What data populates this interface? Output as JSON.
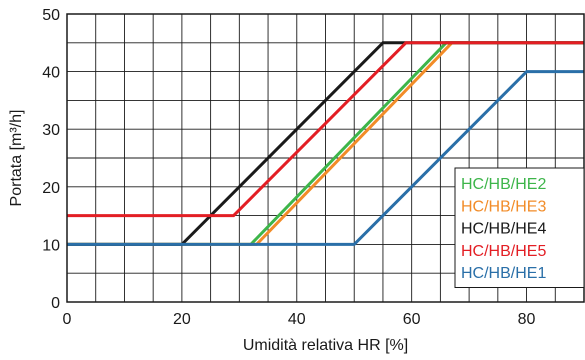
{
  "chart_data": {
    "type": "line",
    "title": "",
    "xlabel": "Umidità relativa HR [%]",
    "ylabel": "Portata [m³/h]",
    "xlim": [
      0,
      90
    ],
    "ylim": [
      0,
      50
    ],
    "x_ticks": [
      0,
      20,
      40,
      60,
      80
    ],
    "y_ticks": [
      0,
      10,
      20,
      30,
      40,
      50
    ],
    "x_minor_step": 5,
    "y_minor_step": 5,
    "grid": true,
    "legend_position": "bottom-right",
    "series": [
      {
        "name": "HC/HB/HE2",
        "color": "#3db54a",
        "x": [
          0,
          32,
          66,
          90
        ],
        "y": [
          10,
          10,
          45,
          45
        ]
      },
      {
        "name": "HC/HB/HE3",
        "color": "#f28c28",
        "x": [
          0,
          33,
          67,
          90
        ],
        "y": [
          10,
          10,
          45,
          45
        ]
      },
      {
        "name": "HC/HB/HE4",
        "color": "#1a1a1a",
        "x": [
          0,
          20,
          55,
          90
        ],
        "y": [
          10,
          10,
          45,
          45
        ]
      },
      {
        "name": "HC/HB/HE5",
        "color": "#e31e24",
        "x": [
          0,
          29,
          59,
          90
        ],
        "y": [
          15,
          15,
          45,
          45
        ]
      },
      {
        "name": "HC/HB/HE1",
        "color": "#2a6fa8",
        "x": [
          0,
          50,
          80,
          90
        ],
        "y": [
          10,
          10,
          40,
          40
        ]
      }
    ]
  }
}
